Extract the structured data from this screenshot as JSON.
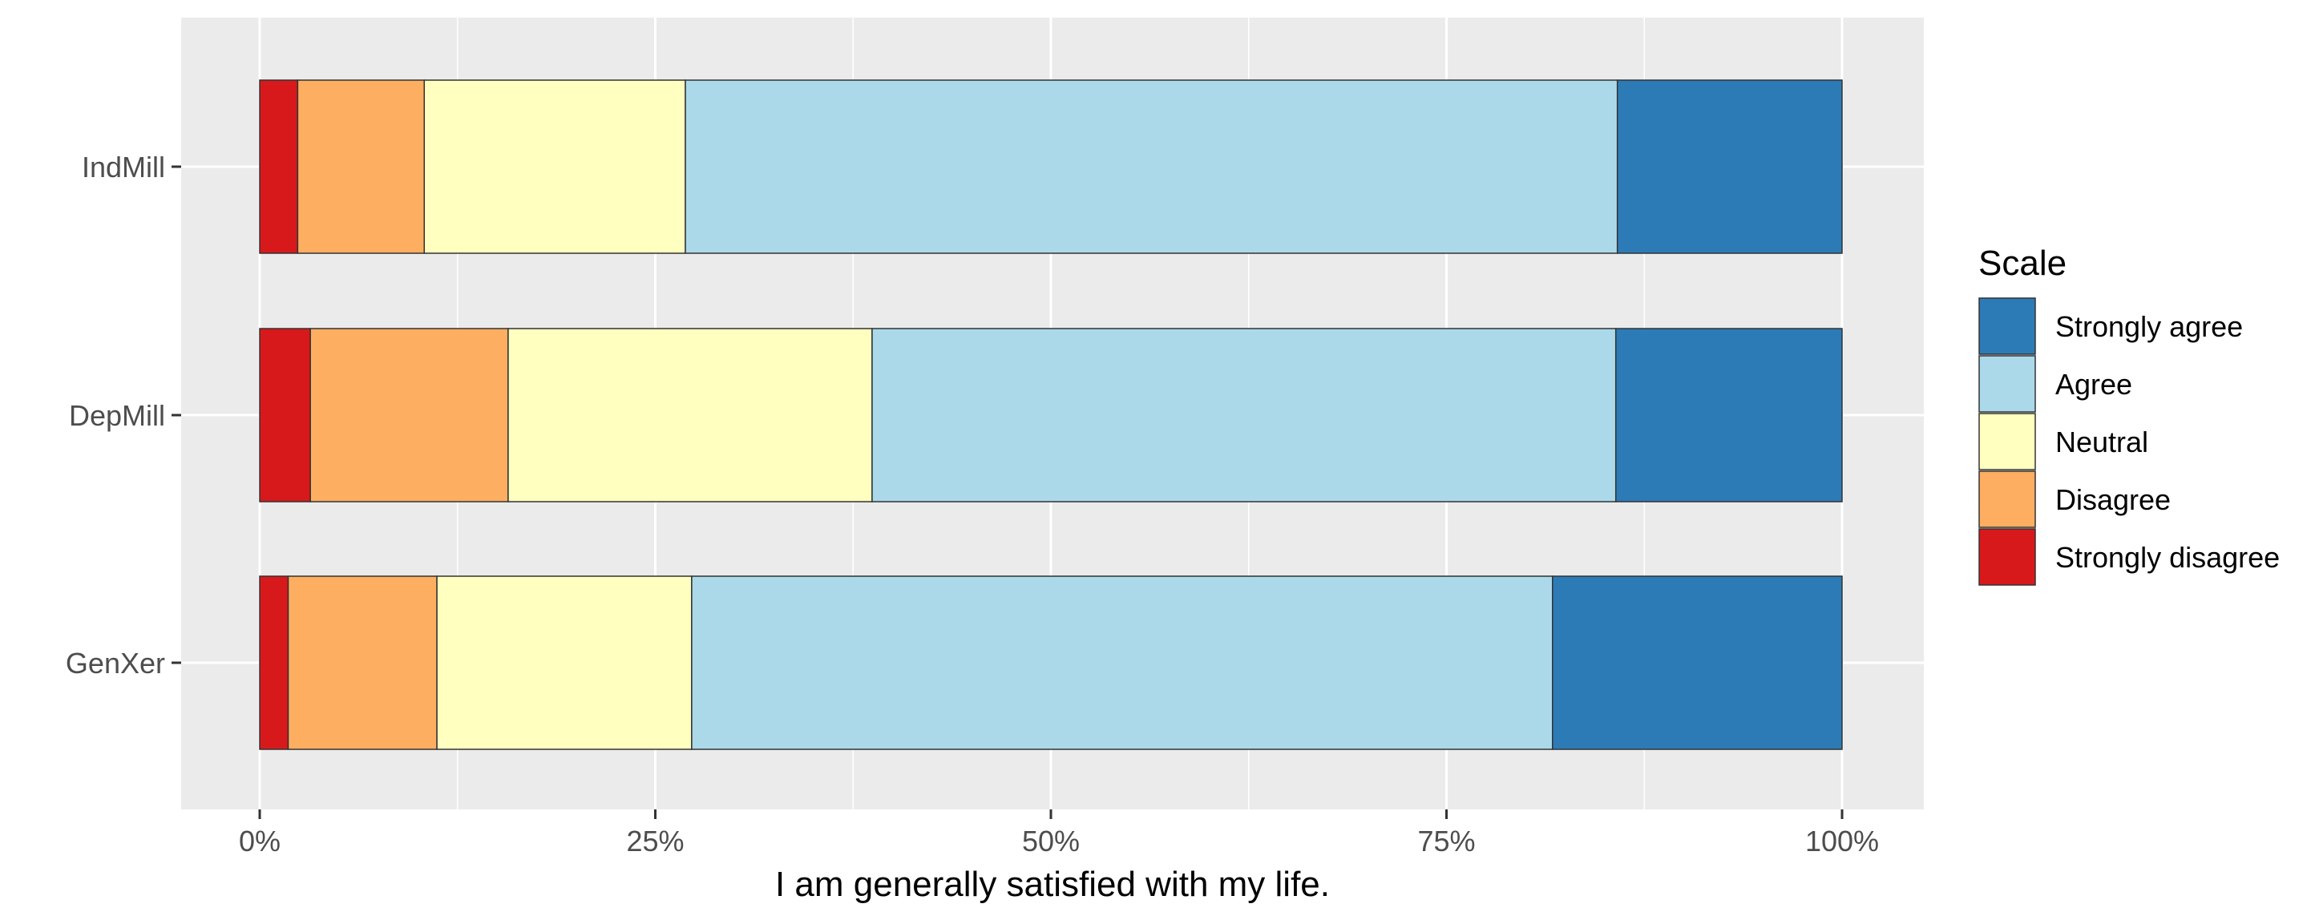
{
  "chart_data": {
    "type": "bar",
    "orientation": "horizontal",
    "stacked": "percent",
    "title": "",
    "xlabel": "I am generally satisfied with my life.",
    "ylabel": "",
    "xlim": [
      0,
      100
    ],
    "x_ticks": [
      0,
      25,
      50,
      75,
      100
    ],
    "x_tick_labels": [
      "0%",
      "25%",
      "50%",
      "75%",
      "100%"
    ],
    "categories": [
      "IndMill",
      "DepMill",
      "GenXer"
    ],
    "series": [
      {
        "name": "Strongly disagree",
        "color": "#d7191c",
        "values": [
          2.4,
          3.2,
          1.8
        ]
      },
      {
        "name": "Disagree",
        "color": "#fdae61",
        "values": [
          8.0,
          12.5,
          9.4
        ]
      },
      {
        "name": "Neutral",
        "color": "#ffffbf",
        "values": [
          16.5,
          23.0,
          16.1
        ]
      },
      {
        "name": "Agree",
        "color": "#abd9e9",
        "values": [
          58.9,
          47.0,
          54.4
        ]
      },
      {
        "name": "Strongly agree",
        "color": "#2c7bb6",
        "values": [
          14.2,
          14.3,
          18.3
        ]
      }
    ],
    "grid": true,
    "background": "#ebebeb",
    "legend": {
      "title": "Scale",
      "position": "right",
      "order": [
        "Strongly agree",
        "Agree",
        "Neutral",
        "Disagree",
        "Strongly disagree"
      ]
    }
  }
}
